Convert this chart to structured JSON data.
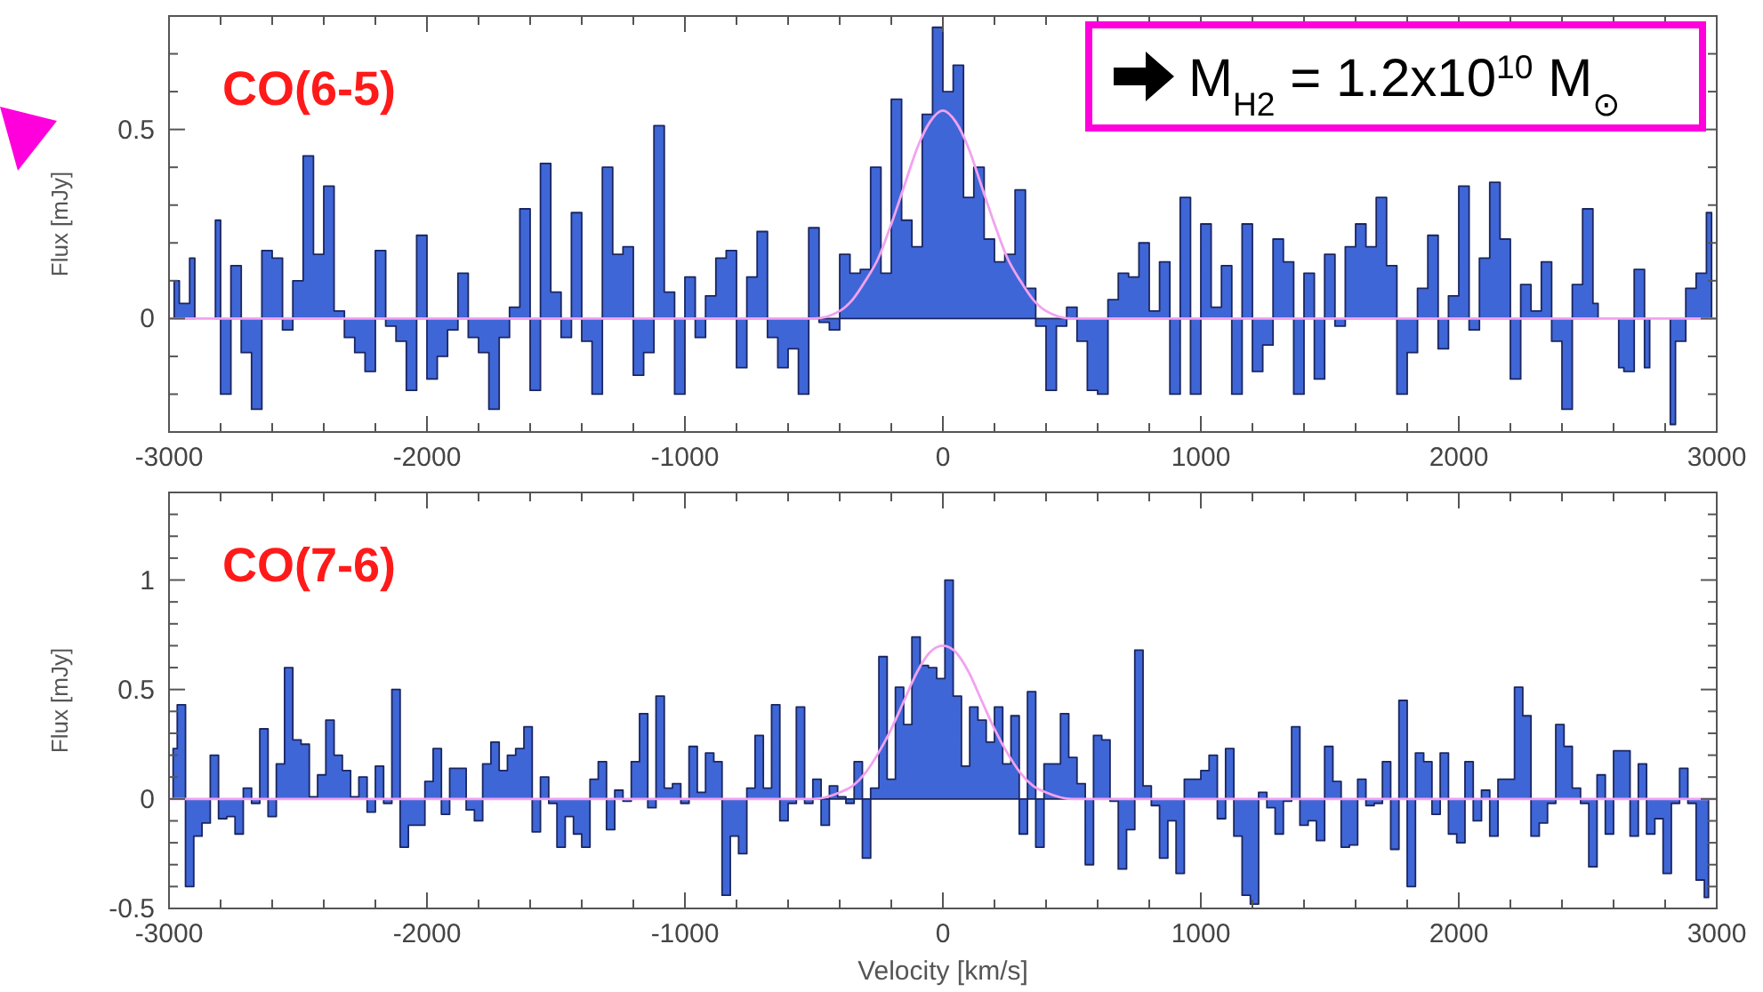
{
  "chart_data": [
    {
      "type": "area",
      "title": "CO(6-5)",
      "ylabel": "Flux [mJy]",
      "xlim": [
        -3000,
        3000
      ],
      "ylim": [
        -0.3,
        0.8
      ],
      "xticks": [
        -3000,
        {
          "value": -2800,
          "label": null
        },
        {
          "value": -2600,
          "label": null
        },
        {
          "value": -2400,
          "label": null
        },
        {
          "value": -2200,
          "label": null
        },
        -2000,
        {
          "value": -1800,
          "label": null
        },
        {
          "value": -1600,
          "label": null
        },
        {
          "value": -1400,
          "label": null
        },
        {
          "value": -1200,
          "label": null
        },
        -1000,
        {
          "value": -800,
          "label": null
        },
        {
          "value": -600,
          "label": null
        },
        {
          "value": -400,
          "label": null
        },
        {
          "value": -200,
          "label": null
        },
        0,
        {
          "value": 200,
          "label": null
        },
        {
          "value": 400,
          "label": null
        },
        {
          "value": 600,
          "label": null
        },
        {
          "value": 800,
          "label": null
        },
        1000,
        {
          "value": 1200,
          "label": null
        },
        {
          "value": 1400,
          "label": null
        },
        {
          "value": 1600,
          "label": null
        },
        {
          "value": 1800,
          "label": null
        },
        2000,
        {
          "value": 2200,
          "label": null
        },
        {
          "value": 2400,
          "label": null
        },
        {
          "value": 2600,
          "label": null
        },
        {
          "value": 2800,
          "label": null
        },
        3000
      ],
      "yticks": [
        {
          "value": -0.2,
          "label": null
        },
        {
          "value": -0.1,
          "label": null
        },
        0,
        {
          "value": 0.1,
          "label": null
        },
        {
          "value": 0.2,
          "label": null
        },
        {
          "value": 0.3,
          "label": null
        },
        {
          "value": 0.4,
          "label": null
        },
        0.5,
        {
          "value": 0.6,
          "label": null
        },
        {
          "value": 0.7,
          "label": null
        }
      ],
      "annotations": [
        "M$_{H2}$ = 1.2x10$^{10}$ M$_{⊙}$"
      ],
      "series": [
        {
          "color": "#3f66d6",
          "x": [
            -2980,
            -2940,
            -2900,
            -2860,
            -2820,
            -2780,
            -2740,
            -2700,
            -2660,
            -2620,
            -2580,
            -2540,
            -2500,
            -2460,
            -2420,
            -2380,
            -2340,
            -2300,
            -2260,
            -2220,
            -2180,
            -2140,
            -2100,
            -2060,
            -2020,
            -1980,
            -1940,
            -1900,
            -1860,
            -1820,
            -1780,
            -1740,
            -1700,
            -1660,
            -1620,
            -1580,
            -1540,
            -1500,
            -1460,
            -1420,
            -1380,
            -1340,
            -1300,
            -1260,
            -1220,
            -1180,
            -1140,
            -1100,
            -1060,
            -1020,
            -980,
            -940,
            -900,
            -860,
            -820,
            -780,
            -740,
            -700,
            -660,
            -620,
            -580,
            -540,
            -500,
            -460,
            -420,
            -380,
            -340,
            -300,
            -260,
            -220,
            -180,
            -140,
            -100,
            -60,
            -20,
            20,
            60,
            100,
            140,
            180,
            220,
            260,
            300,
            340,
            380,
            420,
            460,
            500,
            540,
            580,
            620,
            660,
            700,
            740,
            780,
            820,
            860,
            900,
            940,
            980,
            1020,
            1060,
            1100,
            1140,
            1180,
            1220,
            1260,
            1300,
            1340,
            1380,
            1420,
            1460,
            1500,
            1540,
            1580,
            1620,
            1660,
            1700,
            1740,
            1780,
            1820,
            1860,
            1900,
            1940,
            1980,
            2020,
            2060,
            2100,
            2140,
            2180,
            2220,
            2260,
            2300,
            2340,
            2380,
            2420,
            2460,
            2500,
            2540,
            2580,
            2620,
            2660,
            2700,
            2740,
            2780,
            2820,
            2860,
            2900,
            2940,
            2980
          ],
          "values": [
            0.1,
            0.04,
            0.16,
            null,
            0.26,
            -0.2,
            0.14,
            -0.09,
            -0.24,
            0.18,
            0.16,
            -0.03,
            0.1,
            0.43,
            0.17,
            0.35,
            0.02,
            -0.05,
            -0.09,
            -0.14,
            0.18,
            -0.02,
            -0.06,
            -0.19,
            0.22,
            -0.16,
            -0.1,
            -0.03,
            0.12,
            -0.05,
            -0.09,
            -0.24,
            -0.05,
            0.03,
            0.29,
            -0.19,
            0.41,
            0.07,
            -0.05,
            0.28,
            -0.06,
            -0.2,
            0.4,
            0.17,
            0.19,
            -0.15,
            -0.09,
            0.51,
            0.07,
            -0.2,
            0.11,
            -0.05,
            0.06,
            0.16,
            0.18,
            -0.13,
            0.11,
            0.23,
            -0.05,
            -0.13,
            -0.08,
            -0.2,
            0.24,
            -0.01,
            -0.03,
            0.17,
            0.12,
            0.13,
            0.4,
            0.12,
            0.58,
            0.26,
            0.19,
            0.54,
            0.77,
            0.6,
            0.67,
            0.32,
            0.4,
            0.21,
            0.15,
            0.17,
            0.34,
            0.08,
            -0.02,
            -0.19,
            -0.02,
            0.03,
            -0.06,
            -0.19,
            -0.2,
            0.05,
            0.12,
            0.11,
            0.2,
            0.02,
            0.15,
            -0.2,
            0.32,
            -0.2,
            0.25,
            0.03,
            0.14,
            -0.2,
            0.25,
            -0.14,
            -0.07,
            0.21,
            0.15,
            -0.2,
            0.12,
            -0.16,
            0.17,
            -0.02,
            0.19,
            0.25,
            0.19,
            0.32,
            0.14,
            -0.2,
            -0.09,
            0.08,
            0.22,
            -0.08,
            0.06,
            0.35,
            -0.03,
            0.16,
            0.36,
            0.21,
            -0.16,
            0.09,
            0.02,
            0.15,
            -0.06,
            -0.24,
            0.09,
            0.29,
            0.04,
            null,
            -0.13,
            -0.14,
            0.13,
            -0.13,
            null,
            -0.28,
            -0.06,
            0.08,
            0.12,
            0.28
          ]
        },
        {
          "type": "line",
          "color": "#f2a2f0",
          "x": [
            -3000,
            -800,
            -600,
            -500,
            -400,
            -350,
            -300,
            -250,
            -200,
            -150,
            -100,
            -50,
            0,
            50,
            100,
            150,
            200,
            250,
            300,
            350,
            400,
            500,
            600,
            800,
            3000
          ],
          "values": [
            0,
            0,
            0,
            0,
            0.02,
            0.05,
            0.1,
            0.16,
            0.25,
            0.35,
            0.45,
            0.52,
            0.55,
            0.52,
            0.45,
            0.35,
            0.25,
            0.16,
            0.1,
            0.05,
            0.02,
            0,
            0,
            0,
            0
          ]
        }
      ]
    },
    {
      "type": "area",
      "title": "CO(7-6)",
      "xlabel": "Velocity [km/s]",
      "ylabel": "Flux [mJy]",
      "xlim": [
        -3000,
        3000
      ],
      "ylim": [
        -0.5,
        1.4
      ],
      "xticks": [
        -3000,
        {
          "value": -2800,
          "label": null
        },
        {
          "value": -2600,
          "label": null
        },
        {
          "value": -2400,
          "label": null
        },
        {
          "value": -2200,
          "label": null
        },
        -2000,
        {
          "value": -1800,
          "label": null
        },
        {
          "value": -1600,
          "label": null
        },
        {
          "value": -1400,
          "label": null
        },
        {
          "value": -1200,
          "label": null
        },
        -1000,
        {
          "value": -800,
          "label": null
        },
        {
          "value": -600,
          "label": null
        },
        {
          "value": -400,
          "label": null
        },
        {
          "value": -200,
          "label": null
        },
        0,
        {
          "value": 200,
          "label": null
        },
        {
          "value": 400,
          "label": null
        },
        {
          "value": 600,
          "label": null
        },
        {
          "value": 800,
          "label": null
        },
        1000,
        {
          "value": 1200,
          "label": null
        },
        {
          "value": 1400,
          "label": null
        },
        {
          "value": 1600,
          "label": null
        },
        {
          "value": 1800,
          "label": null
        },
        2000,
        {
          "value": 2200,
          "label": null
        },
        {
          "value": 2400,
          "label": null
        },
        {
          "value": 2600,
          "label": null
        },
        {
          "value": 2800,
          "label": null
        },
        3000
      ],
      "yticks": [
        -0.5,
        {
          "value": -0.4,
          "label": null
        },
        {
          "value": -0.3,
          "label": null
        },
        {
          "value": -0.2,
          "label": null
        },
        {
          "value": -0.1,
          "label": null
        },
        0,
        {
          "value": 0.1,
          "label": null
        },
        {
          "value": 0.2,
          "label": null
        },
        {
          "value": 0.3,
          "label": null
        },
        {
          "value": 0.4,
          "label": null
        },
        0.5,
        {
          "value": 0.6,
          "label": null
        },
        {
          "value": 0.7,
          "label": null
        },
        {
          "value": 0.8,
          "label": null
        },
        {
          "value": 0.9,
          "label": null
        },
        1,
        {
          "value": 1.1,
          "label": null
        },
        {
          "value": 1.2,
          "label": null
        },
        {
          "value": 1.3,
          "label": null
        }
      ],
      "series": [
        {
          "color": "#3f66d6",
          "x": [
            -2984,
            -2952,
            -2920,
            -2888,
            -2856,
            -2824,
            -2792,
            -2760,
            -2728,
            -2696,
            -2664,
            -2632,
            -2600,
            -2568,
            -2536,
            -2504,
            -2472,
            -2440,
            -2408,
            -2376,
            -2344,
            -2312,
            -2280,
            -2248,
            -2216,
            -2184,
            -2152,
            -2120,
            -2088,
            -2056,
            -2024,
            -1992,
            -1960,
            -1928,
            -1896,
            -1864,
            -1832,
            -1800,
            -1768,
            -1736,
            -1704,
            -1672,
            -1640,
            -1608,
            -1576,
            -1544,
            -1512,
            -1480,
            -1448,
            -1416,
            -1384,
            -1352,
            -1320,
            -1288,
            -1256,
            -1224,
            -1192,
            -1160,
            -1128,
            -1096,
            -1064,
            -1032,
            -1000,
            -968,
            -936,
            -904,
            -872,
            -840,
            -808,
            -776,
            -744,
            -712,
            -680,
            -648,
            -616,
            -584,
            -552,
            -520,
            -488,
            -456,
            -424,
            -392,
            -360,
            -328,
            -296,
            -264,
            -232,
            -200,
            -168,
            -136,
            -104,
            -72,
            -40,
            -8,
            24,
            56,
            88,
            120,
            152,
            184,
            216,
            248,
            280,
            312,
            344,
            376,
            408,
            440,
            472,
            504,
            536,
            568,
            600,
            632,
            664,
            696,
            728,
            760,
            792,
            824,
            856,
            888,
            920,
            952,
            984,
            1016,
            1048,
            1080,
            1112,
            1144,
            1176,
            1208,
            1240,
            1272,
            1304,
            1336,
            1368,
            1400,
            1432,
            1464,
            1496,
            1528,
            1560,
            1592,
            1624,
            1656,
            1688,
            1720,
            1752,
            1784,
            1816,
            1848,
            1880,
            1912,
            1944,
            1976,
            2008,
            2040,
            2072,
            2104,
            2136,
            2168,
            2200,
            2232,
            2264,
            2296,
            2328,
            2360,
            2392,
            2424,
            2456,
            2488,
            2520,
            2552,
            2584,
            2616,
            2648,
            2680,
            2712,
            2744,
            2776,
            2808,
            2840,
            2872,
            2904,
            2936,
            2968
          ],
          "values": [
            0.23,
            0.43,
            -0.4,
            -0.17,
            -0.11,
            0.2,
            -0.09,
            -0.08,
            -0.16,
            0.05,
            -0.02,
            0.32,
            -0.08,
            0.16,
            0.6,
            0.27,
            0.25,
            0.01,
            0.11,
            0.36,
            0.2,
            0.13,
            0.01,
            0.1,
            -0.06,
            0.15,
            -0.02,
            0.5,
            -0.22,
            -0.12,
            -0.12,
            0.08,
            0.23,
            -0.07,
            0.14,
            0.14,
            -0.05,
            -0.1,
            0.16,
            0.26,
            0.13,
            0.2,
            0.23,
            0.33,
            -0.15,
            0.1,
            -0.02,
            -0.22,
            -0.08,
            -0.16,
            -0.22,
            0.09,
            0.17,
            -0.14,
            0.04,
            -0.01,
            0.17,
            0.39,
            -0.04,
            0.47,
            0.05,
            0.07,
            -0.02,
            0.24,
            0.03,
            0.21,
            0.17,
            -0.44,
            -0.17,
            -0.25,
            0.05,
            0.29,
            0.05,
            0.43,
            -0.1,
            -0.02,
            0.42,
            -0.02,
            0.09,
            -0.12,
            0.06,
            0.01,
            -0.02,
            0.17,
            -0.27,
            0.05,
            0.65,
            0.09,
            0.51,
            0.34,
            0.74,
            0.61,
            0.6,
            0.55,
            1.0,
            0.47,
            0.15,
            0.42,
            0.36,
            0.26,
            0.42,
            0.16,
            0.38,
            -0.16,
            0.49,
            -0.22,
            0.16,
            0.16,
            0.39,
            0.19,
            0.07,
            -0.3,
            0.29,
            0.27,
            -0.01,
            -0.32,
            -0.14,
            0.68,
            0.06,
            -0.03,
            -0.27,
            -0.1,
            -0.34,
            0.09,
            0.09,
            0.13,
            0.2,
            -0.09,
            0.23,
            -0.17,
            -0.44,
            -0.48,
            0.03,
            -0.04,
            -0.16,
            -0.01,
            0.33,
            -0.12,
            -0.1,
            -0.19,
            0.24,
            0.08,
            -0.22,
            -0.21,
            0.09,
            -0.03,
            -0.02,
            0.17,
            -0.23,
            0.45,
            -0.4,
            0.21,
            0.17,
            -0.07,
            0.21,
            -0.16,
            -0.2,
            0.17,
            -0.1,
            0.04,
            -0.17,
            0.09,
            0.09,
            0.51,
            0.38,
            -0.17,
            -0.11,
            -0.02,
            0.34,
            0.24,
            0.05,
            -0.02,
            -0.31,
            0.11,
            -0.16,
            0.22,
            0.22,
            -0.17,
            0.16,
            -0.16,
            -0.09,
            -0.34,
            -0.02,
            0.14,
            -0.02,
            -0.37,
            -0.45
          ]
        },
        {
          "type": "line",
          "color": "#f2a2f0",
          "x": [
            -3000,
            -800,
            -600,
            -500,
            -400,
            -350,
            -300,
            -250,
            -200,
            -150,
            -100,
            -50,
            0,
            50,
            100,
            150,
            200,
            250,
            300,
            350,
            400,
            500,
            600,
            800,
            3000
          ],
          "values": [
            0,
            0,
            0,
            0,
            0.03,
            0.06,
            0.12,
            0.21,
            0.32,
            0.45,
            0.58,
            0.67,
            0.7,
            0.67,
            0.58,
            0.45,
            0.32,
            0.21,
            0.12,
            0.06,
            0.03,
            0,
            0,
            0,
            0
          ]
        }
      ]
    }
  ]
}
